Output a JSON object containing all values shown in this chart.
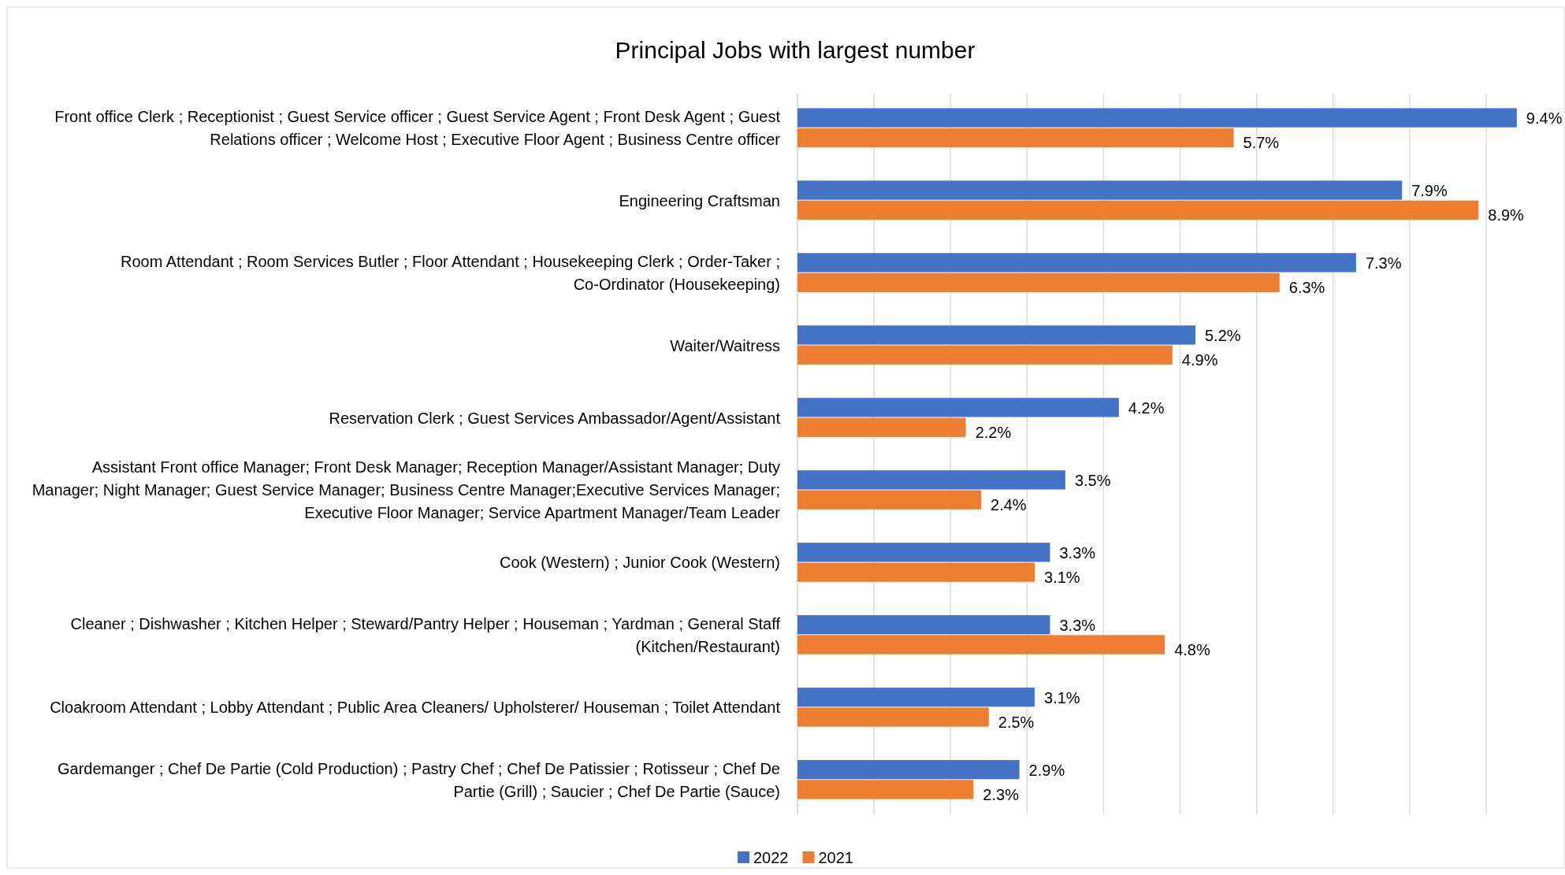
{
  "chart_data": {
    "type": "bar",
    "orientation": "horizontal",
    "title": "Principal Jobs with largest number",
    "categories": [
      "Front office Clerk ; Receptionist ; Guest Service officer ; Guest Service Agent ; Front Desk Agent ; Guest Relations officer ; Welcome Host ; Executive Floor Agent ; Business Centre officer",
      "Engineering Craftsman",
      "Room Attendant ; Room Services Butler ; Floor Attendant ; Housekeeping Clerk ; Order-Taker ; Co-Ordinator (Housekeeping)",
      "Waiter/Waitress",
      "Reservation Clerk ; Guest Services Ambassador/Agent/Assistant",
      "Assistant Front office Manager; Front Desk Manager; Reception Manager/Assistant Manager; Duty Manager; Night Manager; Guest Service Manager; Business Centre Manager;Executive Services Manager; Executive Floor Manager; Service Apartment Manager/Team Leader",
      "Cook (Western) ; Junior Cook (Western)",
      "Cleaner ; Dishwasher ; Kitchen Helper ; Steward/Pantry Helper ; Houseman ; Yardman ; General Staff (Kitchen/Restaurant)",
      "Cloakroom Attendant ; Lobby Attendant ; Public Area Cleaners/ Upholsterer/ Houseman ; Toilet Attendant",
      "Gardemanger ; Chef De Partie (Cold Production) ; Pastry Chef ; Chef De Patissier ; Rotisseur ; Chef De Partie (Grill) ; Saucier ; Chef De Partie (Sauce)"
    ],
    "series": [
      {
        "name": "2022",
        "color": "#4472c4",
        "values": [
          9.4,
          7.9,
          7.3,
          5.2,
          4.2,
          3.5,
          3.3,
          3.3,
          3.1,
          2.9
        ],
        "value_labels": [
          "9.4%",
          "7.9%",
          "7.3%",
          "5.2%",
          "4.2%",
          "3.5%",
          "3.3%",
          "3.3%",
          "3.1%",
          "2.9%"
        ]
      },
      {
        "name": "2021",
        "color": "#ed7d31",
        "values": [
          5.7,
          8.9,
          6.3,
          4.9,
          2.2,
          2.4,
          3.1,
          4.8,
          2.5,
          2.3
        ],
        "value_labels": [
          "5.7%",
          "8.9%",
          "6.3%",
          "4.9%",
          "2.2%",
          "2.4%",
          "3.1%",
          "4.8%",
          "2.5%",
          "2.3%"
        ]
      }
    ],
    "xticks": [
      {
        "value": 0,
        "label": null
      },
      {
        "value": 1,
        "label": null
      },
      {
        "value": 2,
        "label": null
      },
      {
        "value": 3,
        "label": null
      },
      {
        "value": 4,
        "label": null
      },
      {
        "value": 5,
        "label": null
      },
      {
        "value": 6,
        "label": null
      },
      {
        "value": 7,
        "label": null
      },
      {
        "value": 8,
        "label": null
      },
      {
        "value": 9,
        "label": null
      }
    ],
    "tick_labels": "y",
    "grid": "x",
    "legend": "bottom"
  }
}
